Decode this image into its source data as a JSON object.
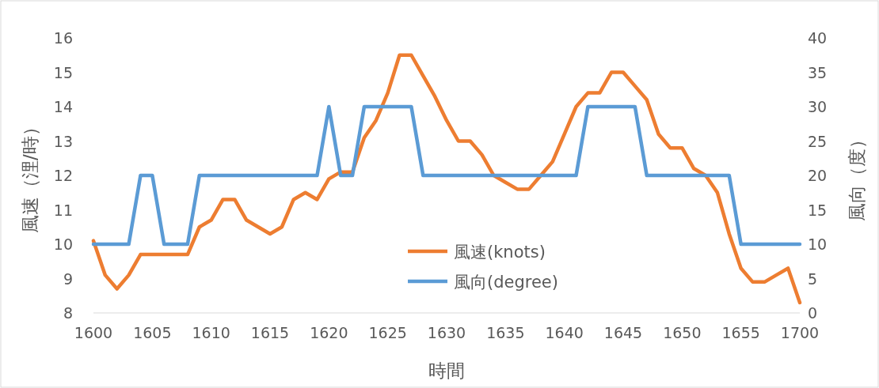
{
  "chart_data": {
    "type": "line",
    "xlabel": "時間",
    "ylabel": "風速（浬/時）",
    "y2label": "風向（度）",
    "categories": [
      "1600",
      null,
      null,
      null,
      null,
      "1605",
      null,
      null,
      null,
      null,
      "1610",
      null,
      null,
      null,
      null,
      "1615",
      null,
      null,
      null,
      null,
      "1620",
      null,
      null,
      null,
      null,
      "1625",
      null,
      null,
      null,
      null,
      "1630",
      null,
      null,
      null,
      null,
      "1635",
      null,
      null,
      null,
      null,
      "1640",
      null,
      null,
      null,
      null,
      "1645",
      null,
      null,
      null,
      null,
      "1650",
      null,
      null,
      null,
      null,
      "1655",
      null,
      null,
      null,
      null,
      "1700"
    ],
    "series": [
      {
        "name": "風速(knots)",
        "color": "#ed7d31",
        "values": [
          10.1,
          9.1,
          8.7,
          9.1,
          9.7,
          9.7,
          9.7,
          9.7,
          9.7,
          10.5,
          10.7,
          11.3,
          11.3,
          10.7,
          10.5,
          10.3,
          10.5,
          11.3,
          11.5,
          11.3,
          11.9,
          12.1,
          12.1,
          13.1,
          13.6,
          14.4,
          15.5,
          15.5,
          14.9,
          14.3,
          13.6,
          13.0,
          13.0,
          12.6,
          12.0,
          11.8,
          11.6,
          11.6,
          12.0,
          12.4,
          13.2,
          14.0,
          14.4,
          14.4,
          15.0,
          15.0,
          14.6,
          14.2,
          13.2,
          12.8,
          12.8,
          12.2,
          12.0,
          11.5,
          10.3,
          9.3,
          8.9,
          8.9,
          9.1,
          9.3,
          8.3
        ]
      },
      {
        "name": "風向(degree)",
        "color": "#5b9bd5",
        "axis": "y2",
        "values": [
          10,
          10,
          10,
          10,
          20,
          20,
          10,
          10,
          10,
          20,
          20,
          20,
          20,
          20,
          20,
          20,
          20,
          20,
          20,
          20,
          30,
          20,
          20,
          30,
          30,
          30,
          30,
          30,
          20,
          20,
          20,
          20,
          20,
          20,
          20,
          20,
          20,
          20,
          20,
          20,
          20,
          20,
          30,
          30,
          30,
          30,
          30,
          20,
          20,
          20,
          20,
          20,
          20,
          20,
          20,
          10,
          10,
          10,
          10,
          10,
          10
        ]
      }
    ],
    "ylim": [
      8,
      16
    ],
    "yticks": [
      8,
      9,
      10,
      11,
      12,
      13,
      14,
      15,
      16
    ],
    "y2lim": [
      0,
      40
    ],
    "y2ticks": [
      0,
      5,
      10,
      15,
      20,
      25,
      30,
      35,
      40
    ],
    "legend": "center"
  }
}
